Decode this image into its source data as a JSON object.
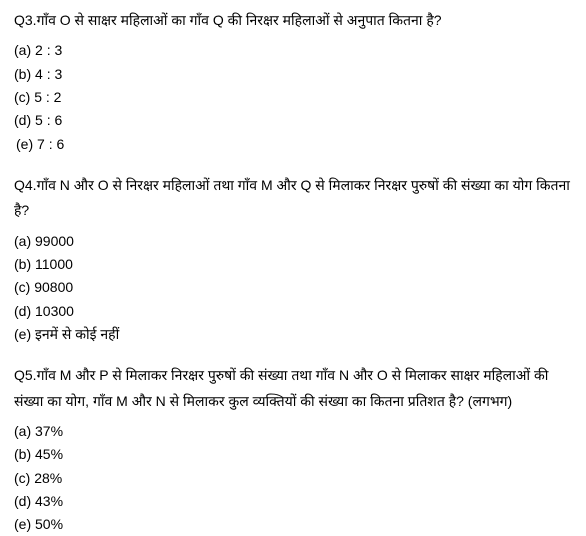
{
  "questions": [
    {
      "number": "Q3.",
      "text": "गाँव O से साक्षर महिलाओं का गाँव Q की निरक्षर महिलाओं से अनुपात कितना है?",
      "options": [
        {
          "label": "(a)",
          "value": "2 : 3"
        },
        {
          "label": "(b)",
          "value": "4 : 3"
        },
        {
          "label": "(c)",
          "value": "5 : 2"
        },
        {
          "label": "(d)",
          "value": "5 : 6"
        },
        {
          "label": " (e)",
          "value": "7 : 6"
        }
      ]
    },
    {
      "number": "Q4.",
      "text": "गाँव N और O से निरक्षर महिलाओं तथा गाँव M और Q से मिलाकर निरक्षर पुरुषों की संख्या का योग कितना है?",
      "options": [
        {
          "label": "(a)",
          "value": "99000"
        },
        {
          "label": "(b)",
          "value": "11000"
        },
        {
          "label": "(c)",
          "value": "90800"
        },
        {
          "label": "(d)",
          "value": "10300"
        },
        {
          "label": "(e)",
          "value": "इनमें से कोई नहीं"
        }
      ]
    },
    {
      "number": "Q5.",
      "text": "गाँव M और P से मिलाकर निरक्षर पुरुषों की संख्या तथा गाँव N और O से मिलाकर साक्षर महिलाओं की संख्या का योग, गाँव M और N से मिलाकर कुल व्यक्तियों की संख्या का कितना प्रतिशत है? (लगभग)",
      "options": [
        {
          "label": "(a)",
          "value": "37%"
        },
        {
          "label": "(b)",
          "value": "45%"
        },
        {
          "label": "(c)",
          "value": "28%"
        },
        {
          "label": "(d)",
          "value": "43%"
        },
        {
          "label": "(e)",
          "value": "50%"
        }
      ]
    }
  ],
  "styling": {
    "background_color": "#ffffff",
    "text_color": "#000000",
    "question_fontsize": 14,
    "option_fontsize": 14,
    "line_height": 1.8
  }
}
